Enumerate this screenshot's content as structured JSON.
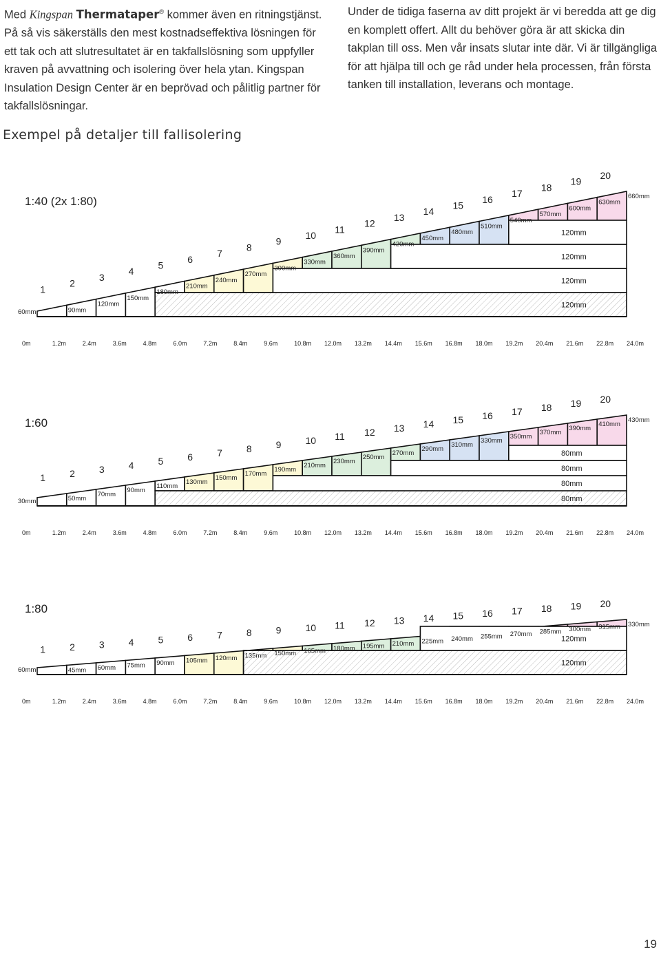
{
  "intro": {
    "left": {
      "prefix": "Med",
      "brand_kingspan": "Kingspan",
      "brand_product": "Thermataper",
      "brand_mark": "®",
      "text": "kommer även en ritningstjänst. På så vis säkerställs den mest kostnadseffektiva lösningen för ett tak och att slutresultatet är en takfallslösning som uppfyller kraven på avvattning och isolering över hela ytan. Kingspan Insulation Design Center är en beprövad och pålitlig partner för takfallslösningar."
    },
    "right": {
      "text": "Under de tidiga faserna av ditt projekt är vi beredda att ge dig en komplett offert. Allt du behöver göra är att skicka din takplan till oss. Men vår insats slutar inte där. Vi är tillgängliga för att hjälpa till och ge råd under hela processen, från första tanken till installation, leverans och montage."
    }
  },
  "section_title": "Exempel på detaljer till fallisolering",
  "colors": {
    "group_1_5": "#ffffff",
    "group_6_9": "#fdf9d6",
    "group_10_13": "#dcefdd",
    "group_14_16": "#d6e2f3",
    "group_17_20": "#f8d9ea",
    "base_hatch": "#bbbbbb"
  },
  "x_axis": [
    "0m",
    "1.2m",
    "2.4m",
    "3.6m",
    "4.8m",
    "6.0m",
    "7.2m",
    "8.4m",
    "9.6m",
    "10.8m",
    "12.0m",
    "13.2m",
    "14.4m",
    "15.6m",
    "16.8m",
    "18.0m",
    "19.2m",
    "20.4m",
    "21.6m",
    "22.8m",
    "24.0m"
  ],
  "element_numbers": [
    "1",
    "2",
    "3",
    "4",
    "5",
    "6",
    "7",
    "8",
    "9",
    "10",
    "11",
    "12",
    "13",
    "14",
    "15",
    "16",
    "17",
    "18",
    "19",
    "20"
  ],
  "diagrams": [
    {
      "scale": "1:40 (2x 1:80)",
      "slope_labels": [
        "60mm",
        "90mm",
        "120mm",
        "150mm",
        "180mm",
        "210mm",
        "240mm",
        "270mm",
        "300mm",
        "330mm",
        "360mm",
        "390mm",
        "420mm",
        "450mm",
        "480mm",
        "510mm",
        "540mm",
        "570mm",
        "600mm",
        "630mm",
        "660mm"
      ],
      "base_layers": [
        "120mm",
        "120mm",
        "120mm",
        "120mm"
      ]
    },
    {
      "scale": "1:60",
      "slope_labels": [
        "30mm",
        "50mm",
        "70mm",
        "90mm",
        "110mm",
        "130mm",
        "150mm",
        "170mm",
        "190mm",
        "210mm",
        "230mm",
        "250mm",
        "270mm",
        "290mm",
        "310mm",
        "330mm",
        "350mm",
        "370mm",
        "390mm",
        "410mm",
        "430mm"
      ],
      "base_layers": [
        "80mm",
        "80mm",
        "80mm",
        "80mm"
      ]
    },
    {
      "scale": "1:80",
      "slope_labels": [
        "60mm",
        "45mm",
        "60mm",
        "75mm",
        "90mm",
        "105mm",
        "120mm",
        "135mm",
        "150mm",
        "165mm",
        "180mm",
        "195mm",
        "210mm",
        "225mm",
        "240mm",
        "255mm",
        "270mm",
        "285mm",
        "300mm",
        "315mm",
        "330mm"
      ],
      "base_layers": [
        "120mm",
        "120mm"
      ]
    }
  ],
  "page_number": "19"
}
